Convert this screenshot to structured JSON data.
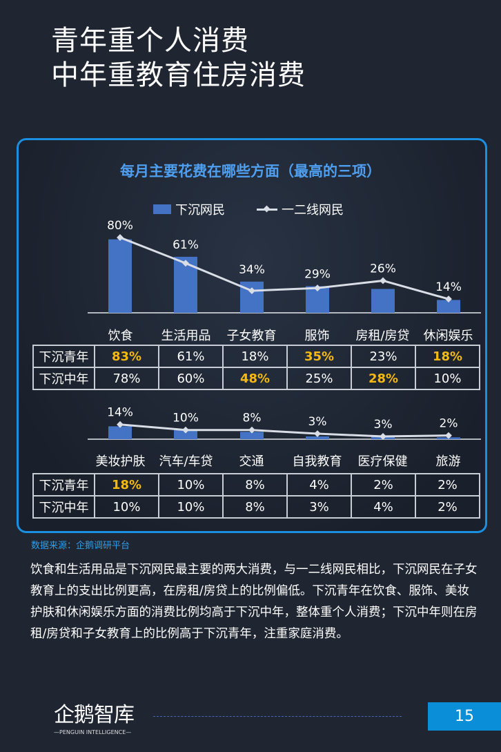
{
  "header": {
    "title_line1": "青年重个人消费",
    "title_line2": "中年重教育住房消费"
  },
  "chart_data": [
    {
      "type": "bar+line",
      "title": "每月主要花费在哪些方面（最高的三项）",
      "legend_position": "top",
      "grid": false,
      "categories": [
        "饮食",
        "生活用品",
        "子女教育",
        "服饰",
        "房租/房贷",
        "休闲娱乐"
      ],
      "series": [
        {
          "name": "下沉网民",
          "type": "bar",
          "color": "#4472c4",
          "values": [
            80,
            61,
            34,
            29,
            26,
            14
          ],
          "labels": [
            "80%",
            "61%",
            "34%",
            "29%",
            "26%",
            "14%"
          ]
        },
        {
          "name": "一二线网民",
          "type": "line",
          "color": "#d9dde6",
          "values": [
            82,
            54,
            24,
            27,
            35,
            15
          ]
        }
      ],
      "ylim": [
        0,
        85
      ]
    },
    {
      "type": "bar+line",
      "grid": false,
      "categories": [
        "美妆护肤",
        "汽车/车贷",
        "交通",
        "自我教育",
        "医疗保健",
        "旅游"
      ],
      "series": [
        {
          "name": "下沉网民",
          "type": "bar",
          "color": "#4472c4",
          "values": [
            14,
            10,
            8,
            3,
            3,
            2
          ],
          "labels": [
            "14%",
            "10%",
            "8%",
            "3%",
            "3%",
            "2%"
          ]
        },
        {
          "name": "一二线网民",
          "type": "line",
          "color": "#d9dde6",
          "values": [
            16,
            10,
            10,
            6,
            3,
            4
          ]
        }
      ],
      "ylim": [
        0,
        85
      ]
    }
  ],
  "table1": {
    "rows": [
      {
        "label": "下沉青年",
        "cells": [
          "83%",
          "61%",
          "18%",
          "35%",
          "23%",
          "18%"
        ],
        "highlight": [
          0,
          3,
          5
        ]
      },
      {
        "label": "下沉中年",
        "cells": [
          "78%",
          "60%",
          "48%",
          "25%",
          "28%",
          "10%"
        ],
        "highlight": [
          2,
          4
        ]
      }
    ]
  },
  "table2": {
    "rows": [
      {
        "label": "下沉青年",
        "cells": [
          "18%",
          "10%",
          "8%",
          "4%",
          "2%",
          "2%"
        ],
        "highlight": [
          0
        ]
      },
      {
        "label": "下沉中年",
        "cells": [
          "10%",
          "10%",
          "8%",
          "3%",
          "4%",
          "2%"
        ],
        "highlight": []
      }
    ]
  },
  "colors": {
    "highlight": "#f5b915",
    "accent": "#1b8fe0"
  },
  "source": "数据来源：企鹅调研平台",
  "body": "饮食和生活用品是下沉网民最主要的两大消费，与一二线网民相比，下沉网民在子女教育上的支出比例更高，在房租/房贷上的比例偏低。下沉青年在饮食、服饰、美妆护肤和休闲娱乐方面的消费比例均高于下沉中年，整体重个人消费；下沉中年则在房租/房贷和子女教育上的比例高于下沉青年，注重家庭消费。",
  "footer": {
    "logo_cn": "企鹅智库",
    "logo_en": "—PENGUIN INTELLIGENCE—",
    "page": "15"
  }
}
